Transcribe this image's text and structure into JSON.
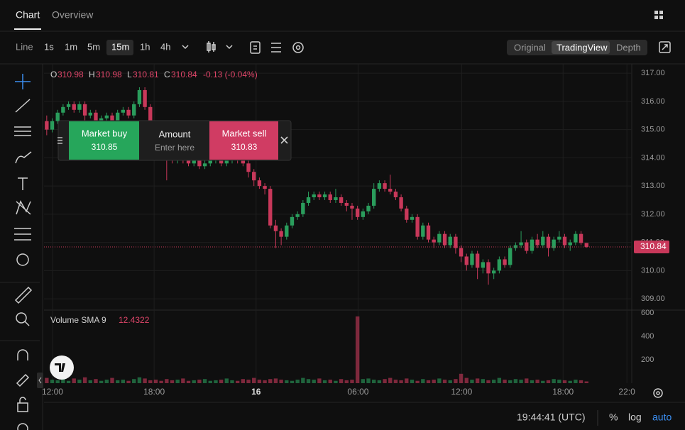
{
  "tabs": [
    "Chart",
    "Overview"
  ],
  "intervals": [
    "Line",
    "1s",
    "1m",
    "5m",
    "15m",
    "1h",
    "4h"
  ],
  "views": [
    "Original",
    "TradingView",
    "Depth"
  ],
  "legend": {
    "o_label": "O",
    "open": "310.98",
    "h_label": "H",
    "high": "310.98",
    "l_label": "L",
    "low": "310.81",
    "c_label": "C",
    "close": "310.84",
    "change": "-0.13 (-0.04%)"
  },
  "order_panel": {
    "buy_label": "Market buy",
    "buy_price": "310.85",
    "amount_label": "Amount",
    "amount_placeholder": "Enter here",
    "sell_label": "Market sell",
    "sell_price": "310.83"
  },
  "volume_label": {
    "name": "Volume SMA 9",
    "value": "12.4322"
  },
  "status": {
    "time": "19:44:41 (UTC)",
    "percent": "%",
    "log": "log",
    "auto": "auto"
  },
  "chart_data": {
    "type": "candlestick",
    "up_color": "#2a9d5c",
    "down_color": "#c8385a",
    "grid": true,
    "xlim": [
      0,
      107.8
    ],
    "xticks": [
      {
        "value": 1.56,
        "label": "12:00"
      },
      {
        "value": 20.2,
        "label": "18:00"
      },
      {
        "value": 38.9,
        "label": "16"
      },
      {
        "value": 57.6,
        "label": "06:00"
      },
      {
        "value": 76.6,
        "label": "12:00"
      },
      {
        "value": 95.2,
        "label": "18:00"
      },
      {
        "value": 106.9,
        "label": "22:0"
      }
    ],
    "ylim": [
      308.6,
      317.33
    ],
    "yticks": [
      {
        "value": 309,
        "label": "309.00"
      },
      {
        "value": 310,
        "label": "310.00"
      },
      {
        "value": 311,
        "label": "311.00"
      },
      {
        "value": 312,
        "label": "312.00"
      },
      {
        "value": 313,
        "label": "313.00"
      },
      {
        "value": 314,
        "label": "314.00"
      },
      {
        "value": 315,
        "label": "315.00"
      },
      {
        "value": 316,
        "label": "316.00"
      },
      {
        "value": 317,
        "label": "317.00"
      }
    ],
    "last_price": {
      "value": 310.84,
      "label": "310.84"
    },
    "candles": [
      [
        315.3,
        315.5,
        314.8,
        315.0
      ],
      [
        315.0,
        315.4,
        314.9,
        315.3
      ],
      [
        315.3,
        315.7,
        315.2,
        315.6
      ],
      [
        315.6,
        315.9,
        315.5,
        315.8
      ],
      [
        315.8,
        316.0,
        315.7,
        315.9
      ],
      [
        315.9,
        316.0,
        315.6,
        315.7
      ],
      [
        315.7,
        316.0,
        315.6,
        315.9
      ],
      [
        315.9,
        316.0,
        313.9,
        315.5
      ],
      [
        315.5,
        315.7,
        315.4,
        315.6
      ],
      [
        315.6,
        315.7,
        315.1,
        315.2
      ],
      [
        315.2,
        315.5,
        315.1,
        315.4
      ],
      [
        315.4,
        315.6,
        315.3,
        315.5
      ],
      [
        315.5,
        315.6,
        315.2,
        315.3
      ],
      [
        315.3,
        315.7,
        315.2,
        315.6
      ],
      [
        315.6,
        315.8,
        315.5,
        315.7
      ],
      [
        315.7,
        315.8,
        315.4,
        315.5
      ],
      [
        315.5,
        316.0,
        315.4,
        315.9
      ],
      [
        315.9,
        316.5,
        315.8,
        316.4
      ],
      [
        316.4,
        316.5,
        315.7,
        315.8
      ],
      [
        315.8,
        315.9,
        315.1,
        315.2
      ],
      [
        315.2,
        315.3,
        314.7,
        314.8
      ],
      [
        314.8,
        314.9,
        314.4,
        314.5
      ],
      [
        314.5,
        314.6,
        313.2,
        314.0
      ],
      [
        314.0,
        314.1,
        313.8,
        313.9
      ],
      [
        313.9,
        314.1,
        313.8,
        314.0
      ],
      [
        314.0,
        314.1,
        313.8,
        313.9
      ],
      [
        313.9,
        314.0,
        313.7,
        313.8
      ],
      [
        313.8,
        314.0,
        313.7,
        313.9
      ],
      [
        313.9,
        314.0,
        313.6,
        313.7
      ],
      [
        313.7,
        313.9,
        313.6,
        313.8
      ],
      [
        313.8,
        314.0,
        313.7,
        313.9
      ],
      [
        313.9,
        314.1,
        313.8,
        314.0
      ],
      [
        314.0,
        314.1,
        313.7,
        313.8
      ],
      [
        313.8,
        314.0,
        313.7,
        313.9
      ],
      [
        313.9,
        314.2,
        313.8,
        314.0
      ],
      [
        314.0,
        314.1,
        313.8,
        313.9
      ],
      [
        313.9,
        314.0,
        313.7,
        313.8
      ],
      [
        313.8,
        313.9,
        313.3,
        313.5
      ],
      [
        313.5,
        313.6,
        313.0,
        313.2
      ],
      [
        313.2,
        313.3,
        312.9,
        313.0
      ],
      [
        313.0,
        313.1,
        312.7,
        312.9
      ],
      [
        312.9,
        313.0,
        311.5,
        311.6
      ],
      [
        311.6,
        311.8,
        310.8,
        311.4
      ],
      [
        311.4,
        311.5,
        310.9,
        311.2
      ],
      [
        311.2,
        311.7,
        311.1,
        311.6
      ],
      [
        311.6,
        312.0,
        311.5,
        311.9
      ],
      [
        311.9,
        312.1,
        311.8,
        312.0
      ],
      [
        312.0,
        312.5,
        311.9,
        312.4
      ],
      [
        312.4,
        312.8,
        312.3,
        312.6
      ],
      [
        312.6,
        312.8,
        312.5,
        312.7
      ],
      [
        312.7,
        312.8,
        312.5,
        312.6
      ],
      [
        312.6,
        312.8,
        312.5,
        312.7
      ],
      [
        312.7,
        312.8,
        312.4,
        312.5
      ],
      [
        312.5,
        312.9,
        312.4,
        312.6
      ],
      [
        312.6,
        312.7,
        312.3,
        312.4
      ],
      [
        312.4,
        312.5,
        312.1,
        312.3
      ],
      [
        312.3,
        312.4,
        311.8,
        312.2
      ],
      [
        312.2,
        312.3,
        311.8,
        311.9
      ],
      [
        311.9,
        312.2,
        311.8,
        312.1
      ],
      [
        312.1,
        312.4,
        312.0,
        312.3
      ],
      [
        312.3,
        313.1,
        312.2,
        312.9
      ],
      [
        312.9,
        313.2,
        312.8,
        313.1
      ],
      [
        313.1,
        313.2,
        312.8,
        312.9
      ],
      [
        312.9,
        313.4,
        312.7,
        312.8
      ],
      [
        312.8,
        312.9,
        312.5,
        312.6
      ],
      [
        312.6,
        312.7,
        312.1,
        312.2
      ],
      [
        312.2,
        312.3,
        311.7,
        311.8
      ],
      [
        311.8,
        312.0,
        311.7,
        311.9
      ],
      [
        311.9,
        312.0,
        311.1,
        311.2
      ],
      [
        311.2,
        311.7,
        311.1,
        311.6
      ],
      [
        311.6,
        311.7,
        311.0,
        311.1
      ],
      [
        311.1,
        311.2,
        310.8,
        311.0
      ],
      [
        311.0,
        311.4,
        310.9,
        311.3
      ],
      [
        311.3,
        311.4,
        310.8,
        310.9
      ],
      [
        310.9,
        311.3,
        310.8,
        311.2
      ],
      [
        311.2,
        311.3,
        310.6,
        310.8
      ],
      [
        310.8,
        310.9,
        310.3,
        310.5
      ],
      [
        310.5,
        310.6,
        310.0,
        310.2
      ],
      [
        310.2,
        310.7,
        310.1,
        310.6
      ],
      [
        310.6,
        310.7,
        309.7,
        310.1
      ],
      [
        310.1,
        310.4,
        309.9,
        310.3
      ],
      [
        310.3,
        310.4,
        309.5,
        309.9
      ],
      [
        309.9,
        310.1,
        309.7,
        310.0
      ],
      [
        310.0,
        310.5,
        309.9,
        310.4
      ],
      [
        310.4,
        310.5,
        310.1,
        310.2
      ],
      [
        310.2,
        310.9,
        310.1,
        310.8
      ],
      [
        310.8,
        311.0,
        310.7,
        310.9
      ],
      [
        310.9,
        311.4,
        310.8,
        311.0
      ],
      [
        311.0,
        311.1,
        310.6,
        310.7
      ],
      [
        310.7,
        311.2,
        310.6,
        311.1
      ],
      [
        311.1,
        311.3,
        310.8,
        310.9
      ],
      [
        310.9,
        311.4,
        310.8,
        311.2
      ],
      [
        311.2,
        311.3,
        310.5,
        310.8
      ],
      [
        310.8,
        311.2,
        310.7,
        311.1
      ],
      [
        311.1,
        311.4,
        311.0,
        311.2
      ],
      [
        311.2,
        311.3,
        310.8,
        310.9
      ],
      [
        310.9,
        311.1,
        310.7,
        311.0
      ],
      [
        311.0,
        311.4,
        310.9,
        311.3
      ],
      [
        311.3,
        311.4,
        310.9,
        310.98
      ],
      [
        310.98,
        310.98,
        310.81,
        310.84
      ]
    ],
    "volume": {
      "ylim": [
        0,
        600
      ],
      "yticks": [
        200,
        400,
        600
      ],
      "values": [
        45,
        30,
        25,
        35,
        20,
        40,
        30,
        50,
        25,
        35,
        20,
        30,
        45,
        25,
        30,
        20,
        35,
        50,
        40,
        25,
        30,
        20,
        35,
        25,
        30,
        40,
        20,
        25,
        30,
        35,
        20,
        25,
        30,
        40,
        25,
        20,
        35,
        30,
        45,
        30,
        25,
        35,
        40,
        30,
        25,
        20,
        30,
        45,
        35,
        30,
        40,
        25,
        30,
        20,
        35,
        25,
        30,
        570,
        35,
        40,
        30,
        25,
        35,
        45,
        30,
        25,
        40,
        30,
        20,
        35,
        25,
        30,
        40,
        30,
        25,
        35,
        80,
        45,
        30,
        40,
        35,
        25,
        30,
        45,
        30,
        25,
        35,
        30,
        40,
        25,
        30,
        20,
        25,
        35,
        30,
        25,
        20,
        30,
        25,
        15
      ]
    }
  }
}
